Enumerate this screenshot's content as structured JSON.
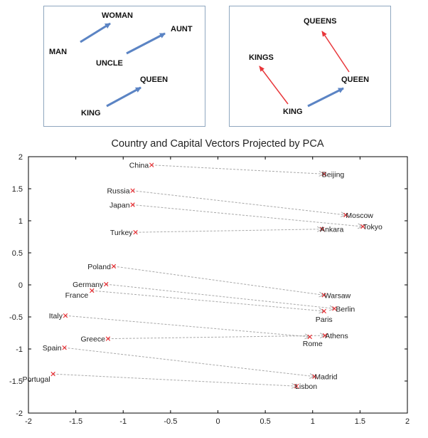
{
  "panels": {
    "left": {
      "words": {
        "man": "MAN",
        "woman": "WOMAN",
        "uncle": "UNCLE",
        "aunt": "AUNT",
        "king": "KING",
        "queen": "QUEEN"
      },
      "arrow_color": "#5b84c4"
    },
    "right": {
      "words": {
        "queens": "QUEENS",
        "kings": "KINGS",
        "queen": "QUEEN",
        "king": "KING"
      },
      "arrow_color": "#5b84c4",
      "plural_arrow_color": "#e8363a"
    }
  },
  "chart_data": {
    "type": "scatter",
    "title": "Country and Capital Vectors Projected by PCA",
    "xlabel": "",
    "ylabel": "",
    "xlim": [
      -2,
      2
    ],
    "ylim": [
      -2,
      2
    ],
    "xticks": [
      -2,
      -1.5,
      -1,
      -0.5,
      0,
      0.5,
      1,
      1.5,
      2
    ],
    "yticks": [
      -2,
      -1.5,
      -1,
      -0.5,
      0,
      0.5,
      1,
      1.5,
      2
    ],
    "xtick_labels": [
      "-2",
      "-1.5",
      "-1",
      "-0.5",
      "0",
      "0.5",
      "1",
      "1.5",
      "2"
    ],
    "ytick_labels": [
      "-2",
      "-1.5",
      "-1",
      "-0.5",
      "0",
      "0.5",
      "1",
      "1.5",
      "2"
    ],
    "marker_color": "#e8262b",
    "arrow_color": "#b0b0b0",
    "pairs": [
      {
        "country": "China",
        "cx": -0.7,
        "cy": 1.87,
        "capital": "Beijing",
        "kx": 1.12,
        "ky": 1.73
      },
      {
        "country": "Russia",
        "cx": -0.9,
        "cy": 1.47,
        "capital": "Moscow",
        "kx": 1.35,
        "ky": 1.09
      },
      {
        "country": "Japan",
        "cx": -0.9,
        "cy": 1.25,
        "capital": "Tokyo",
        "kx": 1.53,
        "ky": 0.91
      },
      {
        "country": "Turkey",
        "cx": -0.87,
        "cy": 0.82,
        "capital": "Ankara",
        "kx": 1.1,
        "ky": 0.87
      },
      {
        "country": "Poland",
        "cx": -1.1,
        "cy": 0.29,
        "capital": "Warsaw",
        "kx": 1.12,
        "ky": -0.16
      },
      {
        "country": "Germany",
        "cx": -1.18,
        "cy": 0.01,
        "capital": "Berlin",
        "kx": 1.23,
        "ky": -0.37
      },
      {
        "country": "France",
        "cx": -1.33,
        "cy": -0.09,
        "capital": "Paris",
        "kx": 1.12,
        "ky": -0.41
      },
      {
        "country": "Italy",
        "cx": -1.61,
        "cy": -0.48,
        "capital": "Rome",
        "kx": 0.97,
        "ky": -0.81
      },
      {
        "country": "Greece",
        "cx": -1.16,
        "cy": -0.84,
        "capital": "Athens",
        "kx": 1.13,
        "ky": -0.79
      },
      {
        "country": "Spain",
        "cx": -1.62,
        "cy": -0.98,
        "capital": "Madrid",
        "kx": 1.02,
        "ky": -1.43
      },
      {
        "country": "Portugal",
        "cx": -1.74,
        "cy": -1.39,
        "capital": "Lisbon",
        "kx": 0.83,
        "ky": -1.58
      }
    ]
  }
}
